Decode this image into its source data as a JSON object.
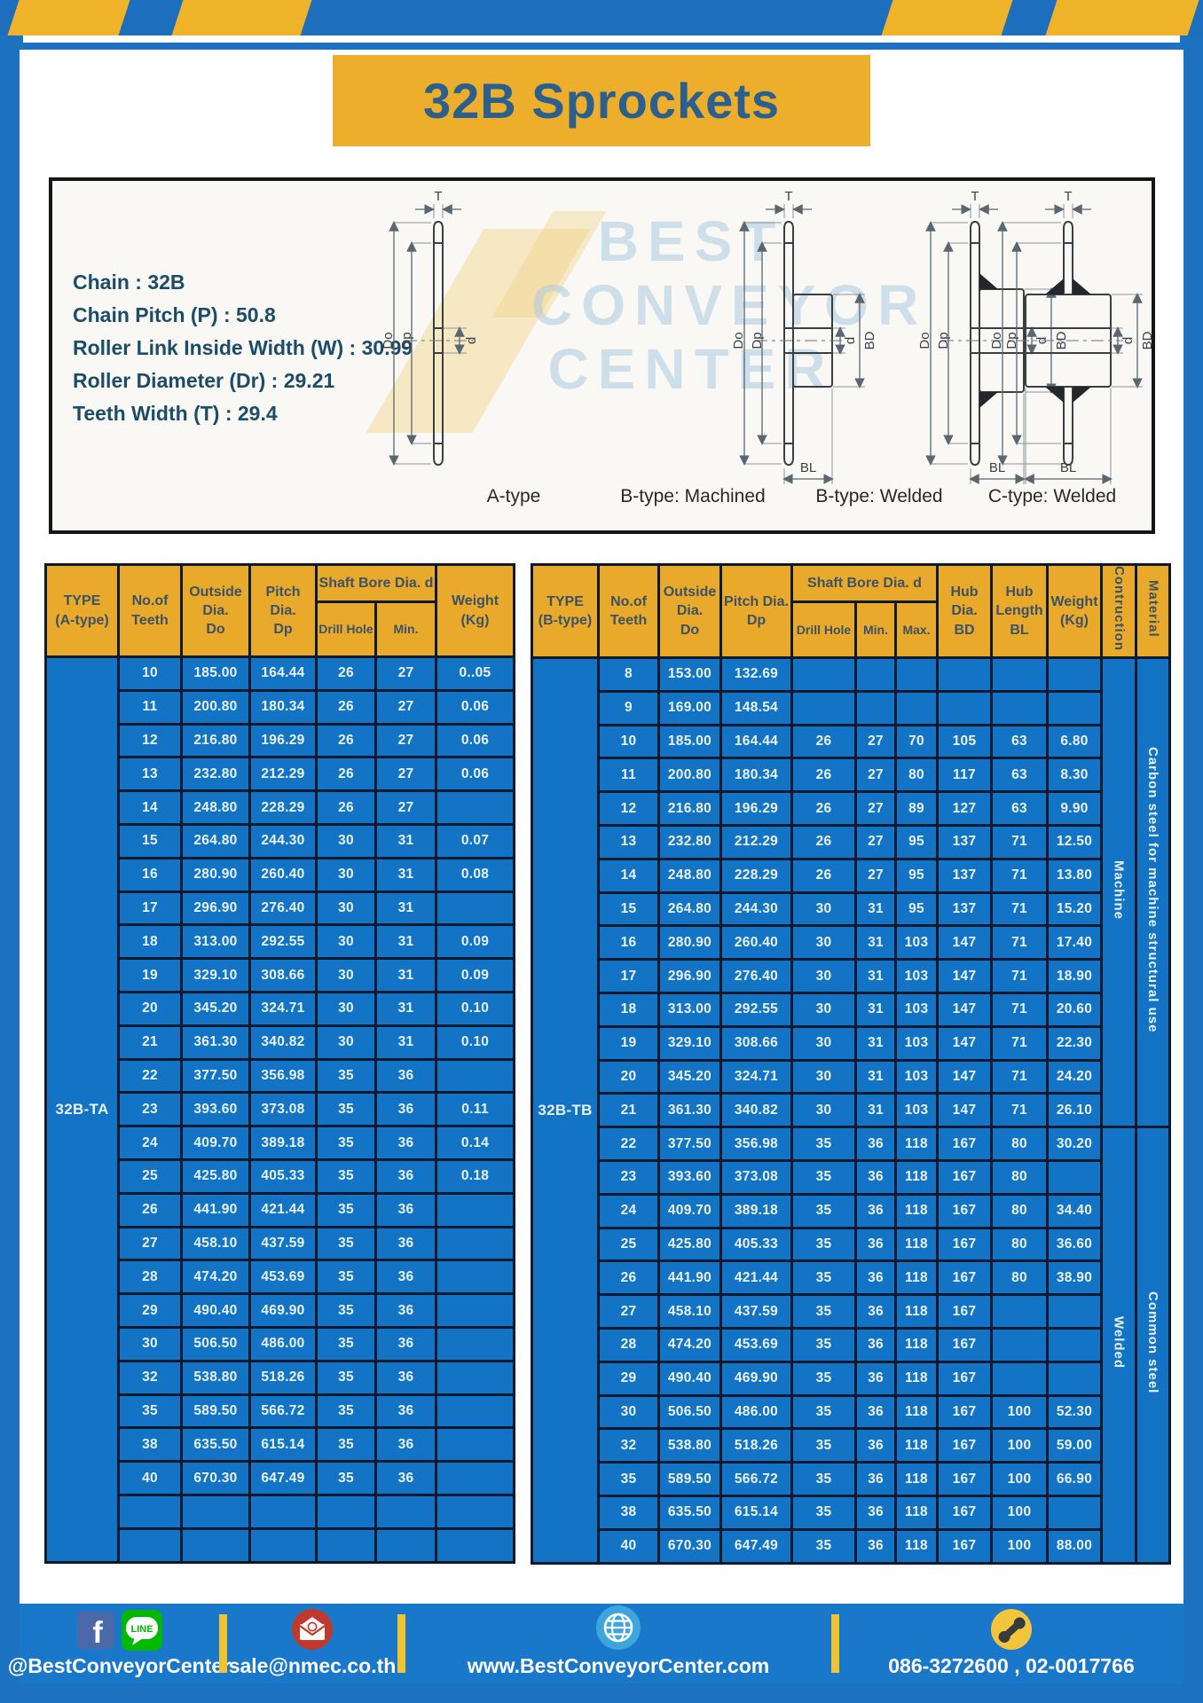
{
  "title": "32B Sprockets",
  "specs": {
    "lines": [
      "Chain  : 32B",
      "Chain Pitch (P)  :  50.8",
      "Roller Link Inside Width (W)  :  30.99",
      "Roller Diameter (Dr)  : 29.21",
      "Teeth Width (T)  :  29.4"
    ]
  },
  "diagram": {
    "captions": [
      "A-type",
      "B-type: Machined",
      "B-type: Welded",
      "C-type: Welded"
    ],
    "dims": {
      "t": "T",
      "outer_dia": "Do",
      "pitch_dia": "Dp",
      "bore": "d",
      "hub_dia": "BD",
      "hub_length": "BL"
    },
    "watermark": [
      "BEST",
      "CONVEYOR",
      "CENTER"
    ]
  },
  "table_a": {
    "type_value": "32B-TA",
    "header": {
      "type": [
        "TYPE",
        "(A-type)"
      ],
      "teeth": [
        "No.of",
        "Teeth"
      ],
      "outside": [
        "Outside",
        "Dia.",
        "Do"
      ],
      "pitch": [
        "Pitch Dia.",
        "Dp"
      ],
      "shaft_group": "Shaft Bore Dia. d",
      "drill": "Drill Hole",
      "min": "Min.",
      "weight": [
        "Weight",
        "(Kg)"
      ]
    },
    "rows": [
      [
        "10",
        "185.00",
        "164.44",
        "26",
        "27",
        "0..05"
      ],
      [
        "11",
        "200.80",
        "180.34",
        "26",
        "27",
        "0.06"
      ],
      [
        "12",
        "216.80",
        "196.29",
        "26",
        "27",
        "0.06"
      ],
      [
        "13",
        "232.80",
        "212.29",
        "26",
        "27",
        "0.06"
      ],
      [
        "14",
        "248.80",
        "228.29",
        "26",
        "27",
        ""
      ],
      [
        "15",
        "264.80",
        "244.30",
        "30",
        "31",
        "0.07"
      ],
      [
        "16",
        "280.90",
        "260.40",
        "30",
        "31",
        "0.08"
      ],
      [
        "17",
        "296.90",
        "276.40",
        "30",
        "31",
        ""
      ],
      [
        "18",
        "313.00",
        "292.55",
        "30",
        "31",
        "0.09"
      ],
      [
        "19",
        "329.10",
        "308.66",
        "30",
        "31",
        "0.09"
      ],
      [
        "20",
        "345.20",
        "324.71",
        "30",
        "31",
        "0.10"
      ],
      [
        "21",
        "361.30",
        "340.82",
        "30",
        "31",
        "0.10"
      ],
      [
        "22",
        "377.50",
        "356.98",
        "35",
        "36",
        ""
      ],
      [
        "23",
        "393.60",
        "373.08",
        "35",
        "36",
        "0.11"
      ],
      [
        "24",
        "409.70",
        "389.18",
        "35",
        "36",
        "0.14"
      ],
      [
        "25",
        "425.80",
        "405.33",
        "35",
        "36",
        "0.18"
      ],
      [
        "26",
        "441.90",
        "421.44",
        "35",
        "36",
        ""
      ],
      [
        "27",
        "458.10",
        "437.59",
        "35",
        "36",
        ""
      ],
      [
        "28",
        "474.20",
        "453.69",
        "35",
        "36",
        ""
      ],
      [
        "29",
        "490.40",
        "469.90",
        "35",
        "36",
        ""
      ],
      [
        "30",
        "506.50",
        "486.00",
        "35",
        "36",
        ""
      ],
      [
        "32",
        "538.80",
        "518.26",
        "35",
        "36",
        ""
      ],
      [
        "35",
        "589.50",
        "566.72",
        "35",
        "36",
        ""
      ],
      [
        "38",
        "635.50",
        "615.14",
        "35",
        "36",
        ""
      ],
      [
        "40",
        "670.30",
        "647.49",
        "35",
        "36",
        ""
      ],
      [
        "",
        "",
        "",
        "",
        "",
        ""
      ],
      [
        "",
        "",
        "",
        "",
        "",
        ""
      ]
    ]
  },
  "table_b": {
    "type_value": "32B-TB",
    "header": {
      "type": [
        "TYPE",
        "(B-type)"
      ],
      "teeth": [
        "No.of",
        "Teeth"
      ],
      "outside": [
        "Outside",
        "Dia.",
        "Do"
      ],
      "pitch": [
        "Pitch Dia.",
        "Dp"
      ],
      "shaft_group": "Shaft Bore Dia. d",
      "drill": "Drill Hole",
      "min": "Min.",
      "max": "Max.",
      "hub_dia": [
        "Hub Dia.",
        "BD"
      ],
      "hub_length": [
        "Hub",
        "Length",
        "BL"
      ],
      "weight": [
        "Weight",
        "(Kg)"
      ],
      "construction": "Contruction",
      "material": "Material"
    },
    "rows": [
      [
        "8",
        "153.00",
        "132.69",
        "",
        "",
        "",
        "",
        "",
        ""
      ],
      [
        "9",
        "169.00",
        "148.54",
        "",
        "",
        "",
        "",
        "",
        ""
      ],
      [
        "10",
        "185.00",
        "164.44",
        "26",
        "27",
        "70",
        "105",
        "63",
        "6.80"
      ],
      [
        "11",
        "200.80",
        "180.34",
        "26",
        "27",
        "80",
        "117",
        "63",
        "8.30"
      ],
      [
        "12",
        "216.80",
        "196.29",
        "26",
        "27",
        "89",
        "127",
        "63",
        "9.90"
      ],
      [
        "13",
        "232.80",
        "212.29",
        "26",
        "27",
        "95",
        "137",
        "71",
        "12.50"
      ],
      [
        "14",
        "248.80",
        "228.29",
        "26",
        "27",
        "95",
        "137",
        "71",
        "13.80"
      ],
      [
        "15",
        "264.80",
        "244.30",
        "30",
        "31",
        "95",
        "137",
        "71",
        "15.20"
      ],
      [
        "16",
        "280.90",
        "260.40",
        "30",
        "31",
        "103",
        "147",
        "71",
        "17.40"
      ],
      [
        "17",
        "296.90",
        "276.40",
        "30",
        "31",
        "103",
        "147",
        "71",
        "18.90"
      ],
      [
        "18",
        "313.00",
        "292.55",
        "30",
        "31",
        "103",
        "147",
        "71",
        "20.60"
      ],
      [
        "19",
        "329.10",
        "308.66",
        "30",
        "31",
        "103",
        "147",
        "71",
        "22.30"
      ],
      [
        "20",
        "345.20",
        "324.71",
        "30",
        "31",
        "103",
        "147",
        "71",
        "24.20"
      ],
      [
        "21",
        "361.30",
        "340.82",
        "30",
        "31",
        "103",
        "147",
        "71",
        "26.10"
      ],
      [
        "22",
        "377.50",
        "356.98",
        "35",
        "36",
        "118",
        "167",
        "80",
        "30.20"
      ],
      [
        "23",
        "393.60",
        "373.08",
        "35",
        "36",
        "118",
        "167",
        "80",
        ""
      ],
      [
        "24",
        "409.70",
        "389.18",
        "35",
        "36",
        "118",
        "167",
        "80",
        "34.40"
      ],
      [
        "25",
        "425.80",
        "405.33",
        "35",
        "36",
        "118",
        "167",
        "80",
        "36.60"
      ],
      [
        "26",
        "441.90",
        "421.44",
        "35",
        "36",
        "118",
        "167",
        "80",
        "38.90"
      ],
      [
        "27",
        "458.10",
        "437.59",
        "35",
        "36",
        "118",
        "167",
        "",
        ""
      ],
      [
        "28",
        "474.20",
        "453.69",
        "35",
        "36",
        "118",
        "167",
        "",
        ""
      ],
      [
        "29",
        "490.40",
        "469.90",
        "35",
        "36",
        "118",
        "167",
        "",
        ""
      ],
      [
        "30",
        "506.50",
        "486.00",
        "35",
        "36",
        "118",
        "167",
        "100",
        "52.30"
      ],
      [
        "32",
        "538.80",
        "518.26",
        "35",
        "36",
        "118",
        "167",
        "100",
        "59.00"
      ],
      [
        "35",
        "589.50",
        "566.72",
        "35",
        "36",
        "118",
        "167",
        "100",
        "66.90"
      ],
      [
        "38",
        "635.50",
        "615.14",
        "35",
        "36",
        "118",
        "167",
        "100",
        ""
      ],
      [
        "40",
        "670.30",
        "647.49",
        "35",
        "36",
        "118",
        "167",
        "100",
        "88.00"
      ]
    ],
    "construction_groups": [
      {
        "label": "Machine",
        "rows": 14
      },
      {
        "label": "Welded",
        "rows": 13
      }
    ],
    "material_groups": [
      {
        "label": "Carbon steel for machine structural use",
        "rows": 14
      },
      {
        "label": "Common steel",
        "rows": 13
      }
    ]
  },
  "footer": {
    "social_label": "@BestConveyorCenter",
    "line_badge": "LINE",
    "email": "sale@nmec.co.th",
    "website": "www.BestConveyorCenter.com",
    "phones": "086-3272600 , 02-0017766"
  },
  "colors": {
    "frame_blue": "#1c72c1",
    "stripe_yellow": "#efb32a",
    "header_yellow": "#e9a92a",
    "cell_blue": "#1373c5",
    "title_text": "#2b608e"
  }
}
